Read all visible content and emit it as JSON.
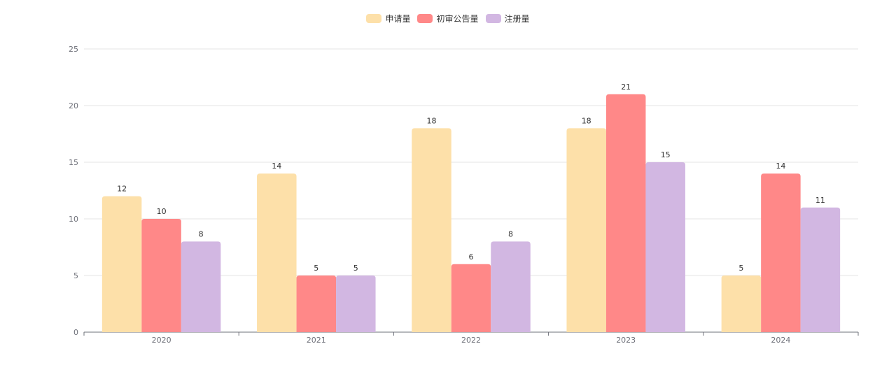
{
  "chart_data": {
    "type": "bar",
    "title": "",
    "xlabel": "",
    "ylabel": "",
    "categories": [
      "2020",
      "2021",
      "2022",
      "2023",
      "2024"
    ],
    "ylim": [
      0,
      25
    ],
    "yticks": [
      0,
      5,
      10,
      15,
      20,
      25
    ],
    "legend_position": "top-center",
    "grid": true,
    "series": [
      {
        "name": "申请量",
        "color": "#fde0a9",
        "values": [
          12,
          14,
          18,
          18,
          5
        ]
      },
      {
        "name": "初审公告量",
        "color": "#ff8888",
        "values": [
          10,
          5,
          6,
          21,
          14
        ]
      },
      {
        "name": "注册量",
        "color": "#d2b7e2",
        "values": [
          8,
          5,
          8,
          15,
          11
        ]
      }
    ]
  }
}
